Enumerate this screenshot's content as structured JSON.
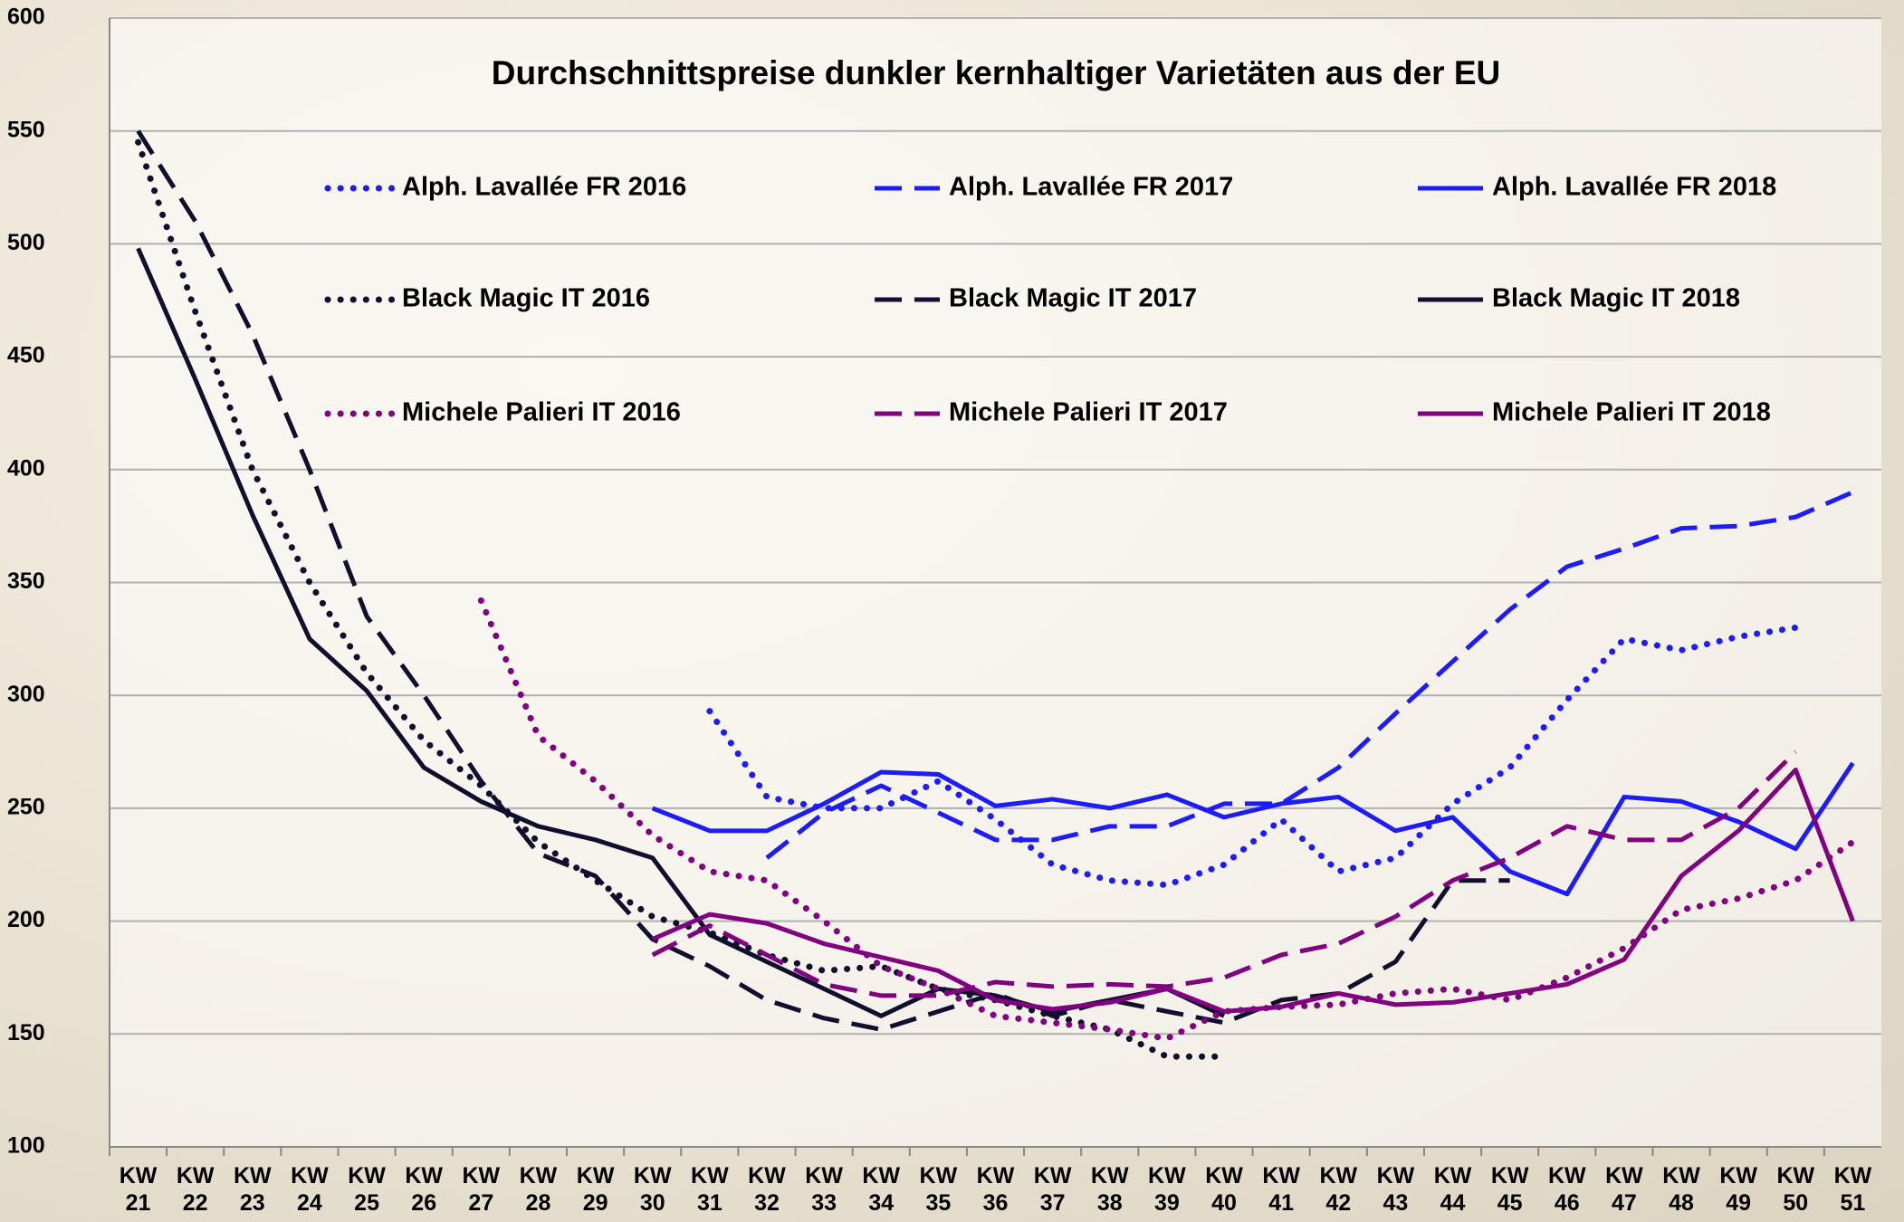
{
  "chart_data": {
    "type": "line",
    "title": "Durchschnittspreise dunkler kernhaltiger Varietäten aus der EU",
    "categories": [
      "KW 21",
      "KW 22",
      "KW 23",
      "KW 24",
      "KW 25",
      "KW 26",
      "KW 27",
      "KW 28",
      "KW 29",
      "KW 30",
      "KW 31",
      "KW 32",
      "KW 33",
      "KW 34",
      "KW 35",
      "KW 36",
      "KW 37",
      "KW 38",
      "KW 39",
      "KW 40",
      "KW 41",
      "KW 42",
      "KW 43",
      "KW 44",
      "KW 45",
      "KW 46",
      "KW 47",
      "KW 48",
      "KW 49",
      "KW 50",
      "KW 51"
    ],
    "ylim": [
      100,
      600
    ],
    "yticks": [
      100,
      150,
      200,
      250,
      300,
      350,
      400,
      450,
      500,
      550,
      600
    ],
    "grid": true,
    "series": [
      {
        "name": "Alph. Lavallée FR 2016",
        "color": "#1c1cff",
        "style": "dotted",
        "values": [
          null,
          null,
          null,
          null,
          null,
          null,
          null,
          null,
          null,
          null,
          293,
          255,
          250,
          250,
          262,
          245,
          225,
          218,
          216,
          225,
          245,
          222,
          228,
          252,
          268,
          298,
          325,
          320,
          326,
          330,
          null
        ]
      },
      {
        "name": "Alph. Lavallée FR 2017",
        "color": "#1c1cff",
        "style": "dashed",
        "values": [
          null,
          null,
          null,
          null,
          null,
          null,
          null,
          null,
          null,
          null,
          null,
          228,
          248,
          260,
          248,
          236,
          236,
          242,
          242,
          252,
          252,
          268,
          292,
          315,
          338,
          357,
          365,
          374,
          375,
          379,
          390
        ]
      },
      {
        "name": "Alph. Lavallée FR 2018",
        "color": "#1c1cff",
        "style": "solid",
        "values": [
          null,
          null,
          null,
          null,
          null,
          null,
          null,
          null,
          null,
          250,
          240,
          240,
          252,
          266,
          265,
          251,
          254,
          250,
          256,
          246,
          252,
          255,
          240,
          246,
          222,
          212,
          255,
          253,
          244,
          232,
          270
        ]
      },
      {
        "name": "Black Magic IT 2016",
        "color": "#10102e",
        "style": "dotted",
        "values": [
          545,
          470,
          400,
          350,
          310,
          280,
          260,
          235,
          218,
          202,
          195,
          185,
          178,
          180,
          170,
          165,
          158,
          152,
          140,
          140,
          null,
          null,
          null,
          null,
          null,
          null,
          null,
          null,
          null,
          null,
          null
        ]
      },
      {
        "name": "Black Magic IT 2017",
        "color": "#10102e",
        "style": "dashed",
        "values": [
          550,
          510,
          460,
          400,
          335,
          300,
          262,
          230,
          220,
          192,
          180,
          165,
          157,
          152,
          160,
          168,
          158,
          165,
          160,
          155,
          165,
          168,
          182,
          218,
          218,
          null,
          null,
          null,
          null,
          null,
          null
        ]
      },
      {
        "name": "Black Magic IT 2018",
        "color": "#10102e",
        "style": "solid",
        "values": [
          498,
          440,
          380,
          325,
          302,
          268,
          253,
          242,
          236,
          228,
          194,
          182,
          170,
          158,
          170,
          167,
          160,
          165,
          170,
          158,
          null,
          null,
          null,
          null,
          null,
          null,
          null,
          null,
          null,
          null,
          null
        ]
      },
      {
        "name": "Michele Palieri IT 2016",
        "color": "#800080",
        "style": "dotted",
        "values": [
          null,
          null,
          null,
          null,
          null,
          null,
          342,
          282,
          262,
          238,
          222,
          218,
          200,
          180,
          170,
          158,
          155,
          152,
          148,
          160,
          162,
          163,
          168,
          170,
          165,
          175,
          188,
          205,
          210,
          218,
          235
        ]
      },
      {
        "name": "Michele Palieri IT 2017",
        "color": "#800080",
        "style": "dashed",
        "values": [
          null,
          null,
          null,
          null,
          null,
          null,
          null,
          null,
          null,
          185,
          198,
          185,
          172,
          167,
          167,
          173,
          171,
          172,
          171,
          175,
          185,
          190,
          202,
          218,
          228,
          242,
          236,
          236,
          250,
          275,
          null
        ]
      },
      {
        "name": "Michele Palieri IT 2018",
        "color": "#800080",
        "style": "solid",
        "values": [
          null,
          null,
          null,
          null,
          null,
          null,
          null,
          null,
          null,
          192,
          203,
          199,
          190,
          184,
          178,
          165,
          161,
          164,
          170,
          160,
          162,
          168,
          163,
          164,
          168,
          172,
          183,
          220,
          240,
          267,
          200
        ]
      }
    ]
  }
}
